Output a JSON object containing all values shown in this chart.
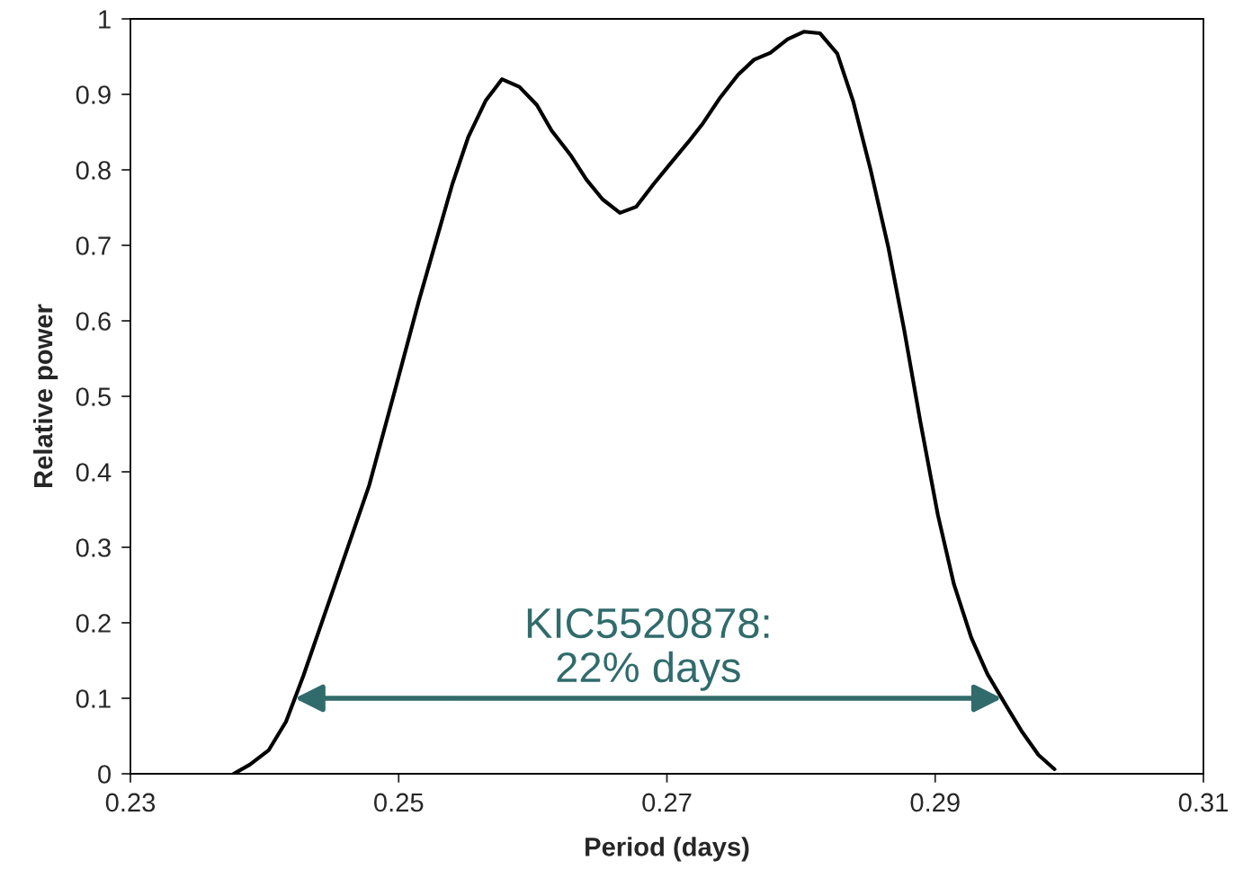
{
  "chart_data": {
    "type": "line",
    "xlabel": "Period (days)",
    "ylabel": "Relative power",
    "x": [
      0.2377,
      0.2389,
      0.2403,
      0.2416,
      0.2429,
      0.2451,
      0.2478,
      0.2498,
      0.2515,
      0.254,
      0.2552,
      0.2565,
      0.2577,
      0.259,
      0.2603,
      0.2614,
      0.2628,
      0.264,
      0.2652,
      0.2665,
      0.2677,
      0.269,
      0.2702,
      0.2716,
      0.2727,
      0.2739,
      0.2753,
      0.2765,
      0.2777,
      0.279,
      0.2802,
      0.2814,
      0.2827,
      0.2839,
      0.2852,
      0.2865,
      0.2877,
      0.2889,
      0.2902,
      0.2914,
      0.2927,
      0.2939,
      0.2953,
      0.2965,
      0.2977,
      0.2989
    ],
    "series": [
      {
        "color": "#000000",
        "values": [
          0,
          0.012,
          0.031,
          0.069,
          0.13,
          0.243,
          0.382,
          0.513,
          0.626,
          0.781,
          0.844,
          0.892,
          0.92,
          0.91,
          0.886,
          0.852,
          0.82,
          0.787,
          0.761,
          0.743,
          0.751,
          0.781,
          0.807,
          0.837,
          0.862,
          0.894,
          0.926,
          0.946,
          0.955,
          0.973,
          0.983,
          0.981,
          0.954,
          0.89,
          0.799,
          0.698,
          0.587,
          0.466,
          0.343,
          0.251,
          0.18,
          0.132,
          0.09,
          0.055,
          0.025,
          0.006
        ]
      }
    ],
    "xlim": [
      0.23,
      0.31
    ],
    "xticks": [
      0.23,
      0.25,
      0.27,
      0.29,
      0.31
    ],
    "ylim": [
      0,
      1
    ],
    "yticks": [
      0,
      0.1,
      0.2,
      0.3,
      0.4,
      0.5,
      0.6,
      0.7,
      0.8,
      0.9,
      1
    ],
    "grid": false,
    "legend": false,
    "marker": "none",
    "line_style": "solid",
    "annotations": [
      "KIC5520878:\n22% days"
    ]
  }
}
